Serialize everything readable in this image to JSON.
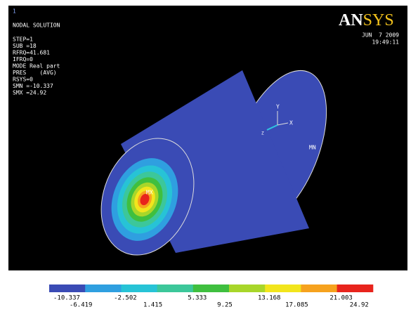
{
  "viewport_number": "1",
  "header": {
    "title": "NODAL SOLUTION",
    "lines": [
      "STEP=1",
      "SUB =18",
      "RFRQ=41.681",
      "IFRQ=0",
      "MODE Real part",
      "PRES    (AVG)",
      "RSYS=0",
      "SMN =-10.337",
      "SMX =24.92"
    ]
  },
  "logo": {
    "part1": "AN",
    "part2": "SYS"
  },
  "date": "JUN  7 2009",
  "time": "19:49:11",
  "model": {
    "max_label": "MX",
    "min_label": "MN"
  },
  "triad": {
    "x": "X",
    "y": "Y",
    "z": "Z"
  },
  "legend": {
    "colors": [
      "#3a4bb5",
      "#2f9fe0",
      "#27c3d6",
      "#3cc79a",
      "#3fbf3f",
      "#a8d62a",
      "#f2e51c",
      "#f6a21e",
      "#e8241c"
    ],
    "labels": [
      "-10.337",
      "-6.419",
      "-2.502",
      "1.415",
      "5.333",
      "9.25",
      "13.168",
      "17.085",
      "21.003",
      "24.92"
    ]
  }
}
